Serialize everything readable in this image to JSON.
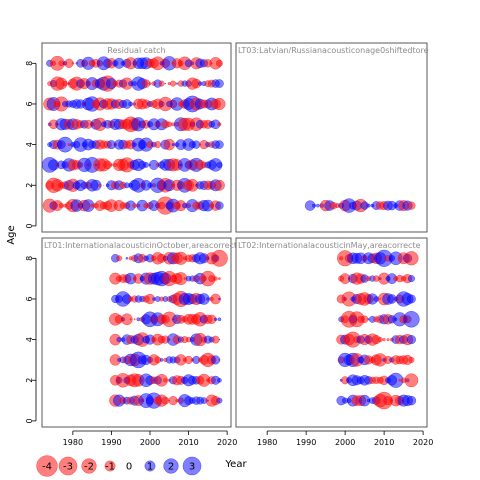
{
  "chart_data": {
    "type": "scatter",
    "description_kind": "bubble residual plot",
    "xlabel": "Year",
    "ylabel": "Age",
    "xlim": [
      1972,
      2021
    ],
    "ylim": [
      -0.3,
      9.0
    ],
    "x_ticks": [
      "1980",
      "1990",
      "2000",
      "2010",
      "2020"
    ],
    "y_ticks": [
      "0",
      "2",
      "4",
      "6",
      "8"
    ],
    "colors": {
      "negative": "#ff0000",
      "positive": "#0000ff",
      "border": "#5a5a5a",
      "panel_title": "#8c8c8c"
    },
    "legend": {
      "values": [
        -4,
        -3,
        -2,
        -1,
        0,
        1,
        2,
        3
      ],
      "labels": [
        "-4",
        "-3",
        "-2",
        "-1",
        "0",
        "1",
        "2",
        "3"
      ]
    },
    "panels": [
      {
        "title": "Residual catch",
        "years": [
          1974,
          2018
        ],
        "ages": [
          1,
          2,
          3,
          4,
          5,
          6,
          7,
          8
        ],
        "seed": 11,
        "residuals": "dense"
      },
      {
        "title": "LT03:Latvian/Russianacousticonage0shiftedtore",
        "years": [
          1991,
          2017
        ],
        "ages": [
          1
        ],
        "seed": 29,
        "residuals": "single-age"
      },
      {
        "title": "LT01:InternationalacousticinOctober,areacorrecte",
        "years": [
          1991,
          2018
        ],
        "ages": [
          1,
          2,
          3,
          4,
          5,
          6,
          7,
          8
        ],
        "seed": 47,
        "residuals": "dense"
      },
      {
        "title": "LT02:InternationalacousticinMay,areacorrecte",
        "years": [
          1999,
          2017
        ],
        "ages": [
          1,
          2,
          3,
          4,
          5,
          6,
          7,
          8
        ],
        "seed": 83,
        "residuals": "dense"
      }
    ]
  }
}
